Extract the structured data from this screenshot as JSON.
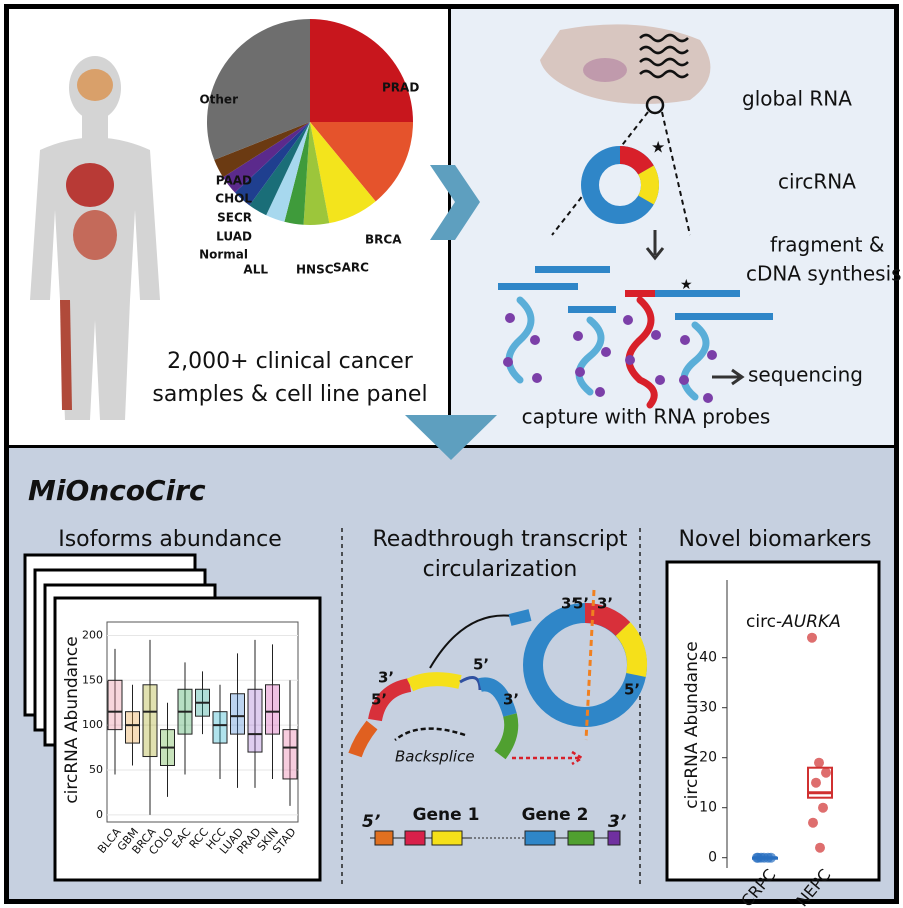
{
  "top_left": {
    "pie": {
      "labels": [
        "PRAD",
        "BRCA",
        "SARC",
        "HNSC",
        "ALL",
        "Normal",
        "LUAD",
        "SECR",
        "CHOL",
        "PAAD",
        "Other"
      ],
      "values": [
        25,
        14,
        8,
        4,
        3,
        3,
        3,
        3,
        3,
        3,
        31
      ],
      "colors": [
        "#c8161d",
        "#e5532c",
        "#f3e41c",
        "#9cc63b",
        "#3f9b3b",
        "#a7d8ee",
        "#1a6e78",
        "#1f3f8f",
        "#5b2a8c",
        "#6b3a12",
        "#6e6e6e"
      ]
    },
    "caption": [
      "2,000+ clinical cancer",
      "samples & cell line panel"
    ]
  },
  "top_right": {
    "global_rna": "global RNA",
    "circrna": "circRNA",
    "fragment": [
      "fragment &",
      "cDNA synthesis"
    ],
    "sequencing": "sequencing",
    "capture": "capture with RNA probes"
  },
  "bottom": {
    "title": "MiOncoCirc",
    "isoforms": {
      "title": "Isoforms abundance",
      "ylabel": "circRNA Abundance",
      "ylim": [
        -8,
        215
      ],
      "yticks": [
        0,
        50,
        100,
        150,
        200
      ],
      "categories": [
        "BLCA",
        "GBM",
        "BRCA",
        "COLO",
        "EAC",
        "RCC",
        "HCC",
        "LUAD",
        "PRAD",
        "SKIN",
        "STAD"
      ],
      "colors": [
        "#e88a9a",
        "#e8a040",
        "#a8a820",
        "#60b040",
        "#30a050",
        "#20a090",
        "#20b0c8",
        "#4080d0",
        "#a070d0",
        "#d050b0",
        "#e870a0"
      ],
      "low": [
        45,
        55,
        0,
        20,
        45,
        90,
        40,
        30,
        30,
        40,
        10
      ],
      "q1": [
        95,
        80,
        65,
        55,
        90,
        110,
        80,
        90,
        70,
        90,
        40
      ],
      "median": [
        115,
        100,
        115,
        75,
        115,
        125,
        100,
        110,
        90,
        115,
        75
      ],
      "q3": [
        150,
        115,
        145,
        95,
        140,
        140,
        115,
        135,
        140,
        145,
        95
      ],
      "high": [
        185,
        145,
        195,
        125,
        170,
        160,
        145,
        180,
        195,
        190,
        150
      ]
    },
    "readthrough": {
      "title": [
        "Readthrough transcript",
        "circularization"
      ],
      "backsplice": "Backsplice",
      "gene1": "Gene 1",
      "gene2": "Gene 2",
      "five": "5’",
      "three": "3’"
    },
    "biomarkers": {
      "title": "Novel biomarkers",
      "ylabel": "circRNA Abundance",
      "annotation": {
        "prefix": "circ-",
        "gene": "AURKA"
      },
      "ylim": [
        -3,
        45
      ],
      "yticks": [
        0,
        10,
        20,
        30,
        40
      ],
      "categories": [
        "CRPC",
        "NEPC"
      ],
      "colors": [
        "#2a6fc0",
        "#d03030"
      ],
      "q1": [
        0,
        12
      ],
      "median": [
        0,
        13
      ],
      "q3": [
        0,
        18
      ],
      "points": [
        [
          0,
          0,
          0,
          0,
          0,
          0
        ],
        [
          44,
          19,
          17,
          15,
          10,
          7,
          2
        ]
      ]
    }
  }
}
